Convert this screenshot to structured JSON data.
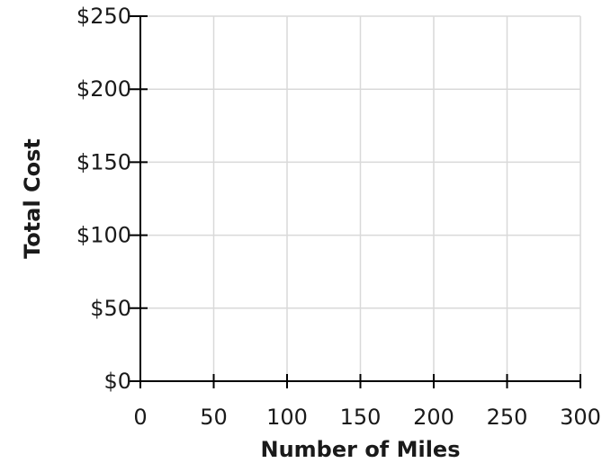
{
  "chart_data": {
    "type": "line",
    "xlabel": "Number of Miles",
    "ylabel": "Total Cost",
    "xlim": [
      0,
      300
    ],
    "ylim": [
      0,
      250
    ],
    "x_ticks": [
      0,
      50,
      100,
      150,
      200,
      250,
      300
    ],
    "y_ticks": [
      0,
      50,
      100,
      150,
      200,
      250
    ],
    "x_tick_labels": [
      "0",
      "50",
      "100",
      "150",
      "200",
      "250",
      "300"
    ],
    "y_tick_labels": [
      "$0",
      "$50",
      "$100",
      "$150",
      "$200",
      "$250"
    ],
    "grid": true,
    "series": [],
    "colors": {
      "grid": "#d9d9d9",
      "axis": "#000000",
      "text": "#1a1a1a"
    }
  }
}
